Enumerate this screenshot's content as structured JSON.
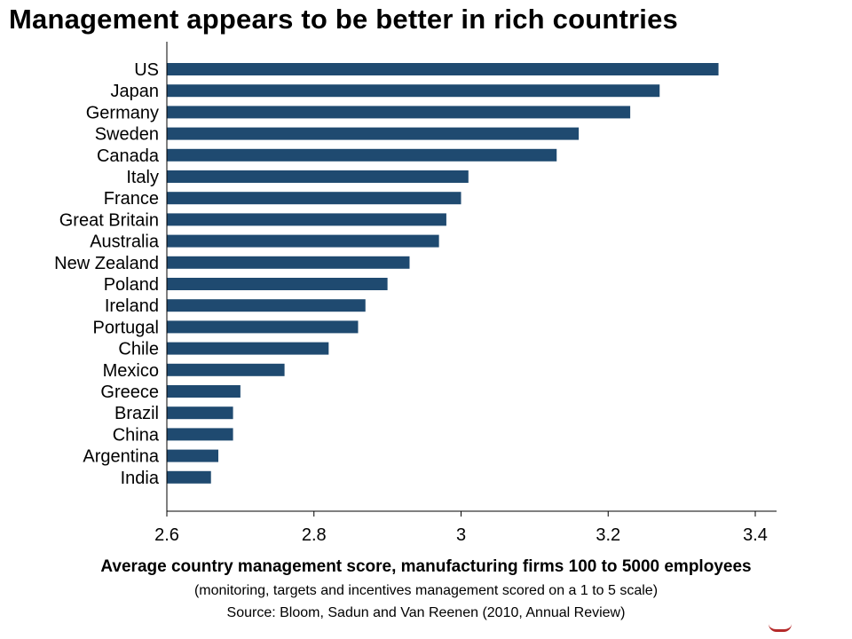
{
  "title": "Management appears to be better in rich countries",
  "caption": {
    "main": "Average country management score, manufacturing firms 100 to 5000 employees",
    "sub": "(monitoring, targets and incentives management scored on a 1 to 5 scale)",
    "source": "Source: Bloom, Sadun and Van Reenen (2010, Annual Review)"
  },
  "colors": {
    "bar": "#1f4a70",
    "axis": "#000000"
  },
  "chart_data": {
    "type": "bar",
    "orientation": "horizontal",
    "categories": [
      "US",
      "Japan",
      "Germany",
      "Sweden",
      "Canada",
      "Italy",
      "France",
      "Great Britain",
      "Australia",
      "New Zealand",
      "Poland",
      "Ireland",
      "Portugal",
      "Chile",
      "Mexico",
      "Greece",
      "Brazil",
      "China",
      "Argentina",
      "India"
    ],
    "values": [
      3.35,
      3.27,
      3.23,
      3.16,
      3.13,
      3.01,
      3.0,
      2.98,
      2.97,
      2.93,
      2.9,
      2.87,
      2.86,
      2.82,
      2.76,
      2.7,
      2.69,
      2.69,
      2.67,
      2.66
    ],
    "xlim": [
      2.6,
      3.42
    ],
    "xticks": [
      2.6,
      2.8,
      3.0,
      3.2,
      3.4
    ],
    "xtick_labels": [
      "2.6",
      "2.8",
      "3",
      "3.2",
      "3.4"
    ],
    "grid": false,
    "legend": "none"
  }
}
